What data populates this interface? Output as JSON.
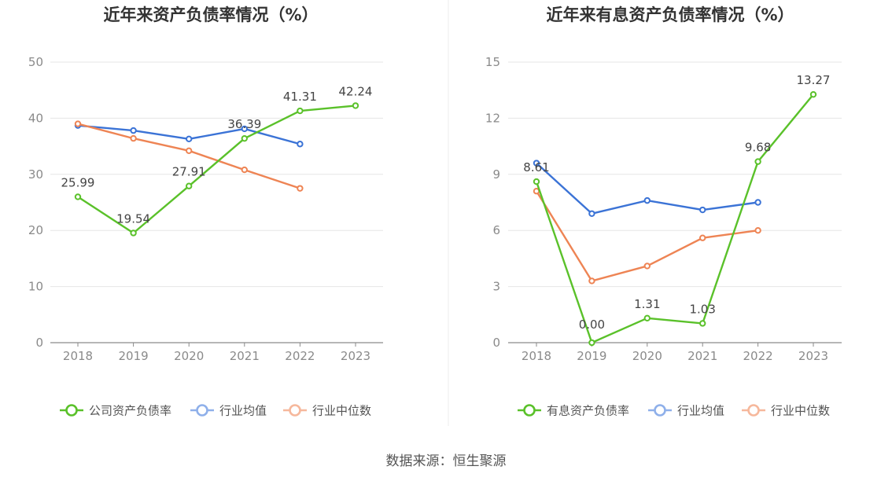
{
  "source_text": "数据来源：恒生聚源",
  "chart_data": [
    {
      "type": "line",
      "title": "近年来资产负债率情况（%）",
      "categories": [
        "2018",
        "2019",
        "2020",
        "2021",
        "2022",
        "2023"
      ],
      "ylim": [
        0,
        50
      ],
      "yticks": [
        0,
        10,
        20,
        30,
        40,
        50
      ],
      "grid": true,
      "legend_position": "bottom",
      "series": [
        {
          "name": "公司资产负债率",
          "color": "#5ac12a",
          "values": [
            25.99,
            19.54,
            27.91,
            36.39,
            41.31,
            42.24
          ],
          "labels": [
            "25.99",
            "19.54",
            "27.91",
            "36.39",
            "41.31",
            "42.24"
          ]
        },
        {
          "name": "行业均值",
          "color": "#3b73d6",
          "values": [
            38.7,
            37.8,
            36.3,
            38.1,
            35.4,
            null
          ]
        },
        {
          "name": "行业中位数",
          "color": "#ee8454",
          "values": [
            39.0,
            36.4,
            34.2,
            30.8,
            27.5,
            null
          ]
        }
      ]
    },
    {
      "type": "line",
      "title": "近年来有息资产负债率情况（%）",
      "categories": [
        "2018",
        "2019",
        "2020",
        "2021",
        "2022",
        "2023"
      ],
      "ylim": [
        0,
        15
      ],
      "yticks": [
        0,
        3,
        6,
        9,
        12,
        15
      ],
      "grid": true,
      "legend_position": "bottom",
      "series": [
        {
          "name": "有息资产负债率",
          "color": "#5ac12a",
          "values": [
            8.61,
            0.0,
            1.31,
            1.03,
            9.68,
            13.27
          ],
          "labels": [
            "8.61",
            "0.00",
            "1.31",
            "1.03",
            "9.68",
            "13.27"
          ]
        },
        {
          "name": "行业均值",
          "color": "#3b73d6",
          "values": [
            9.6,
            6.9,
            7.6,
            7.1,
            7.5,
            null
          ]
        },
        {
          "name": "行业中位数",
          "color": "#ee8454",
          "values": [
            8.1,
            3.3,
            4.1,
            5.6,
            6.0,
            null
          ]
        }
      ]
    }
  ]
}
